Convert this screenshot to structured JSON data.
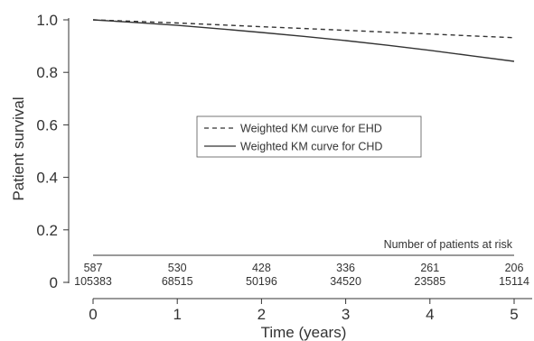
{
  "chart_data": {
    "type": "line",
    "title": "",
    "xlabel": "Time (years)",
    "ylabel": "Patient survival",
    "xlim": [
      0,
      5
    ],
    "ylim": [
      0,
      1.0
    ],
    "x_ticks": [
      "0",
      "1",
      "2",
      "3",
      "4",
      "5"
    ],
    "y_ticks": [
      "0",
      "0.2",
      "0.4",
      "0.6",
      "0.8",
      "1.0"
    ],
    "grid": false,
    "legend_position": "center",
    "series": [
      {
        "name": "Weighted KM curve for EHD",
        "style": "dashed",
        "color": "#333333",
        "x": [
          0,
          0.5,
          1,
          1.5,
          2,
          2.5,
          3,
          3.5,
          4,
          4.5,
          5
        ],
        "y": [
          1.0,
          0.994,
          0.988,
          0.981,
          0.974,
          0.967,
          0.96,
          0.953,
          0.946,
          0.939,
          0.932
        ]
      },
      {
        "name": "Weighted KM curve for CHD",
        "style": "solid",
        "color": "#333333",
        "x": [
          0,
          0.5,
          1,
          1.5,
          2,
          2.5,
          3,
          3.5,
          4,
          4.5,
          5
        ],
        "y": [
          1.0,
          0.99,
          0.979,
          0.966,
          0.952,
          0.937,
          0.921,
          0.903,
          0.884,
          0.863,
          0.842
        ]
      }
    ],
    "risk_table": {
      "title": "Number of patients at risk",
      "times": [
        0,
        1,
        2,
        3,
        4,
        5
      ],
      "rows": [
        {
          "series": "EHD",
          "values": [
            "587",
            "530",
            "428",
            "336",
            "261",
            "206"
          ]
        },
        {
          "series": "CHD",
          "values": [
            "105383",
            "68515",
            "50196",
            "34520",
            "23585",
            "15114"
          ]
        }
      ]
    }
  }
}
